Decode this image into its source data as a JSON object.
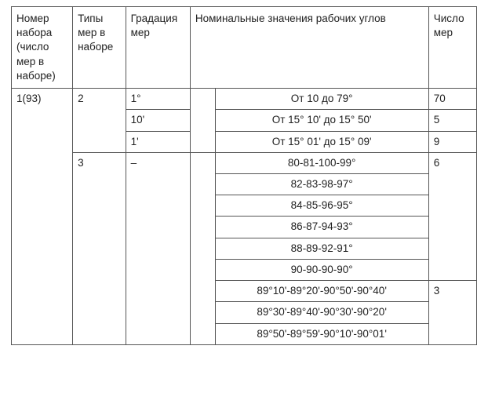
{
  "headers": {
    "col1": "Номер набора (число мер в наборе)",
    "col2": "Типы мер в наборе",
    "col3": "Градация мер",
    "col4": "Номинальные значения рабочих углов",
    "col5": "Число мер"
  },
  "body": {
    "set_number": "1(93)",
    "grp_a": {
      "type": "2",
      "rows": [
        {
          "grad": "1°",
          "val": "От 10 до 79°",
          "count": "70"
        },
        {
          "grad": "10'",
          "val": "От 15° 10' до 15° 50'",
          "count": "5"
        },
        {
          "grad": "1'",
          "val": "От 15° 01' до 15° 09'",
          "count": "9"
        }
      ]
    },
    "grp_b": {
      "type": "3",
      "grad": "–",
      "block1": {
        "count": "6",
        "vals": [
          "80-81-100-99°",
          "82-83-98-97°",
          "84-85-96-95°",
          "86-87-94-93°",
          "88-89-92-91°",
          "90-90-90-90°"
        ]
      },
      "block2": {
        "count": "3",
        "vals": [
          "89°10'-89°20'-90°50'-90°40'",
          "89°30'-89°40'-90°30'-90°20'",
          "89°50'-89°59'-90°10'-90°01'"
        ]
      }
    }
  }
}
